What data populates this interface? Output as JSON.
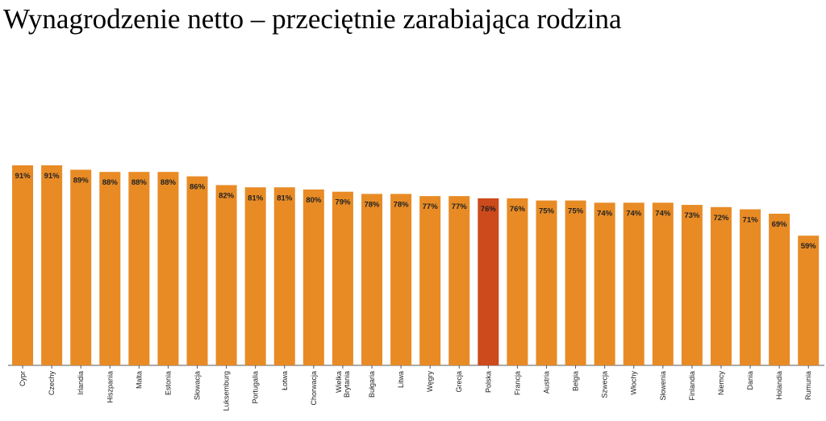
{
  "chart_data": {
    "type": "bar",
    "title": "Wynagrodzenie netto – przeciętnie zarabiająca rodzina",
    "xlabel": "",
    "ylabel": "",
    "ylim": [
      0,
      100
    ],
    "grid": false,
    "legend": "none",
    "value_suffix": "%",
    "categories": [
      "Cypr",
      "Czechy",
      "Irlandia",
      "Hiszpania",
      "Malta",
      "Estonia",
      "Słowacja",
      "Luksemburg",
      "Portugalia",
      "Łotwa",
      "Chorwacja",
      "Wielka Brytania",
      "Bułgaria",
      "Litwa",
      "Węgry",
      "Grecja",
      "Polska",
      "Francja",
      "Austria",
      "Belgia",
      "Szwecja",
      "Włochy",
      "Słowenia",
      "Finlandia",
      "Niemcy",
      "Dania",
      "Holandia",
      "Rumunia"
    ],
    "category_lines": [
      [
        "Cypr"
      ],
      [
        "Czechy"
      ],
      [
        "Irlandia"
      ],
      [
        "Hiszpania"
      ],
      [
        "Malta"
      ],
      [
        "Estonia"
      ],
      [
        "Słowacja"
      ],
      [
        "Luksemburg"
      ],
      [
        "Portugalia"
      ],
      [
        "Łotwa"
      ],
      [
        "Chorwacja"
      ],
      [
        "Wielka",
        "Brytania"
      ],
      [
        "Bułgaria"
      ],
      [
        "Litwa"
      ],
      [
        "Węgry"
      ],
      [
        "Grecja"
      ],
      [
        "Polska"
      ],
      [
        "Francja"
      ],
      [
        "Austria"
      ],
      [
        "Belgia"
      ],
      [
        "Szwecja"
      ],
      [
        "Włochy"
      ],
      [
        "Słowenia"
      ],
      [
        "Finlandia"
      ],
      [
        "Niemcy"
      ],
      [
        "Dania"
      ],
      [
        "Holandia"
      ],
      [
        "Rumunia"
      ]
    ],
    "values": [
      91,
      91,
      89,
      88,
      88,
      88,
      86,
      82,
      81,
      81,
      80,
      79,
      78,
      78,
      77,
      77,
      76,
      76,
      75,
      75,
      74,
      74,
      74,
      73,
      72,
      71,
      69,
      59
    ],
    "bar_color": "#E88B25",
    "highlight_color": "#CC4A1B",
    "highlight_category": "Polska"
  }
}
